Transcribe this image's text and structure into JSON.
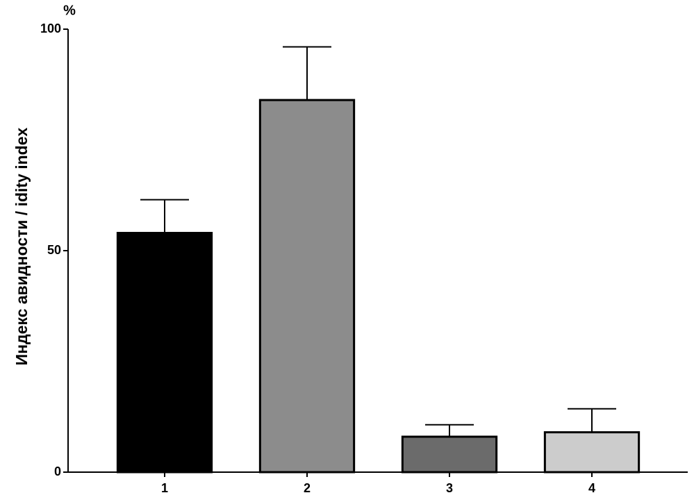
{
  "chart_data": {
    "type": "bar",
    "y_axis_label": "Индекс авидности / idity index",
    "y_unit": "%",
    "categories": [
      "1",
      "2",
      "3",
      "4"
    ],
    "values": [
      54,
      84,
      8,
      9
    ],
    "errors": [
      7.5,
      12,
      2.7,
      5.3
    ],
    "colors": [
      "#000000",
      "#8c8c8c",
      "#6b6b6b",
      "#cccccc"
    ],
    "ylim": [
      0,
      100
    ],
    "yticks": [
      0,
      50,
      100
    ],
    "grid": false
  }
}
